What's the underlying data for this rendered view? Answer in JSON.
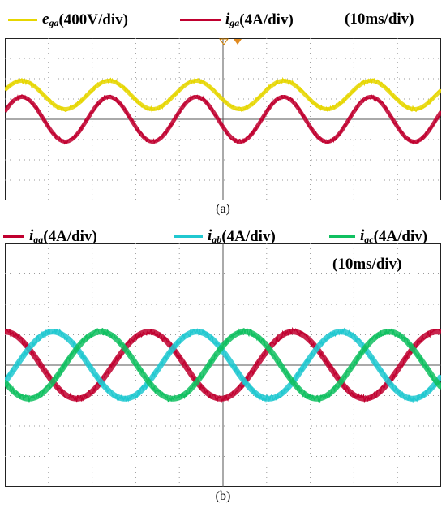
{
  "panel_a": {
    "caption": "(a)",
    "legend": [
      {
        "symbol": "e",
        "sub": "ga",
        "scale": "(400V/div)",
        "color": "#e6d600"
      },
      {
        "symbol": "i",
        "sub": "ga",
        "scale": "(4A/div)",
        "color": "#c0002f"
      }
    ],
    "timebase": "(10ms/div)"
  },
  "panel_b": {
    "caption": "(b)",
    "legend": [
      {
        "symbol": "i",
        "sub": "ga",
        "scale": "(4A/div)",
        "color": "#c0002f"
      },
      {
        "symbol": "i",
        "sub": "gb",
        "scale": "(4A/div)",
        "color": "#20c8d0"
      },
      {
        "symbol": "i",
        "sub": "gc",
        "scale": "(4A/div)",
        "color": "#10c060"
      }
    ],
    "timebase": "(10ms/div)"
  },
  "chart_data": [
    {
      "type": "line",
      "x_units": "div",
      "y_units": "div",
      "xlim": [
        0,
        10
      ],
      "ylim": [
        -4,
        4
      ],
      "grid": true,
      "series": [
        {
          "name": "e_ga (400V/div)",
          "color": "#e6d600",
          "amplitude_div": 0.7,
          "offset_div": 1.2,
          "period_div": 2.0,
          "phase_deg": 20
        },
        {
          "name": "i_ga (4A/div)",
          "color": "#c0002f",
          "amplitude_div": 1.1,
          "offset_div": 0.0,
          "period_div": 2.0,
          "phase_deg": 20
        }
      ]
    },
    {
      "type": "line",
      "x_units": "div",
      "y_units": "div",
      "xlim": [
        0,
        10
      ],
      "ylim": [
        -4,
        4
      ],
      "grid": true,
      "series": [
        {
          "name": "i_ga (4A/div)",
          "color": "#c0002f",
          "amplitude_div": 1.1,
          "offset_div": 0.0,
          "period_div": 3.3,
          "phase_deg": 90
        },
        {
          "name": "i_gb (4A/div)",
          "color": "#20c8d0",
          "amplitude_div": 1.1,
          "offset_div": 0.0,
          "period_div": 3.3,
          "phase_deg": -30
        },
        {
          "name": "i_gc (4A/div)",
          "color": "#10c060",
          "amplitude_div": 1.1,
          "offset_div": 0.0,
          "period_div": 3.3,
          "phase_deg": 210
        }
      ]
    }
  ]
}
